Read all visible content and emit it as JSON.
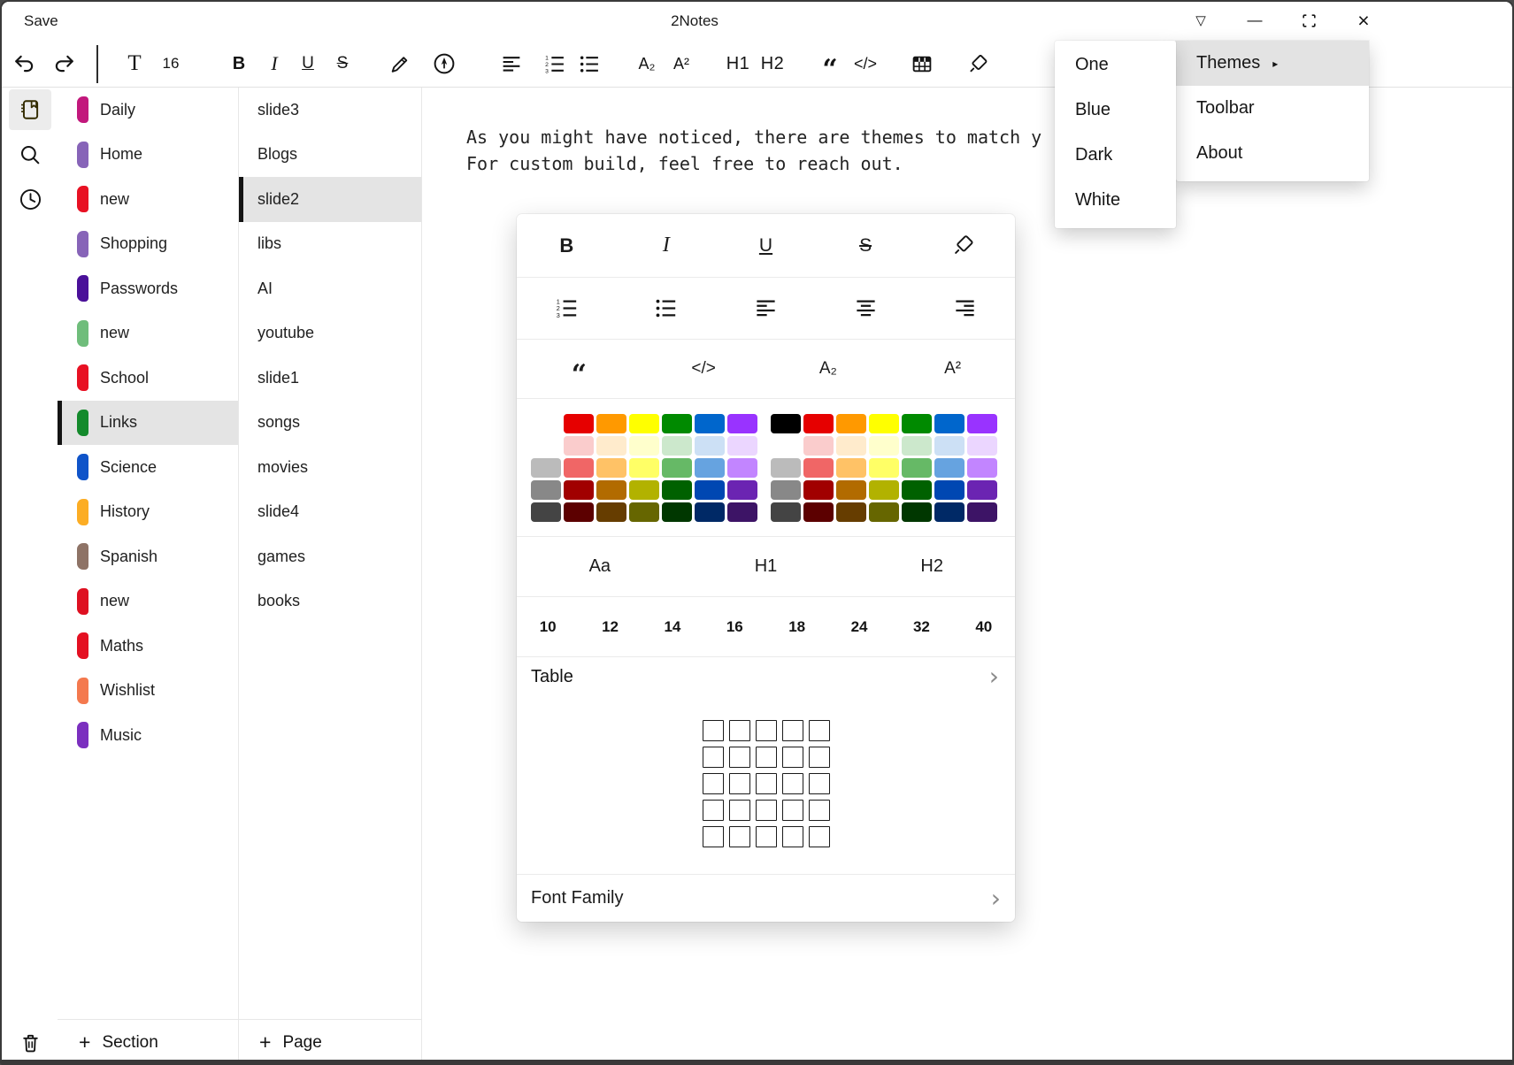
{
  "titlebar": {
    "save": "Save",
    "title": "2Notes"
  },
  "icons": {
    "dropdown": "▽",
    "minimize": "—",
    "close": "×",
    "chevron": "›",
    "submenu_arrow": "▸",
    "plus": "+"
  },
  "toolbar": {
    "font_button": "T",
    "font_size": "16",
    "bold": "B",
    "italic": "I",
    "underline": "U",
    "strike": "S",
    "subscript": "A₂",
    "superscript": "A²",
    "h1": "H1",
    "h2": "H2",
    "quote": "“",
    "code": "</>"
  },
  "sections": {
    "add_label": "Section",
    "items": [
      {
        "label": "Daily",
        "color": "#c2187c",
        "selected": false
      },
      {
        "label": "Home",
        "color": "#8764b8",
        "selected": false
      },
      {
        "label": "new",
        "color": "#e81123",
        "selected": false
      },
      {
        "label": "Shopping",
        "color": "#8764b8",
        "selected": false
      },
      {
        "label": "Passwords",
        "color": "#4a1099",
        "selected": false
      },
      {
        "label": "new",
        "color": "#6fbd7b",
        "selected": false
      },
      {
        "label": "School",
        "color": "#e81123",
        "selected": false
      },
      {
        "label": "Links",
        "color": "#148a2c",
        "selected": true
      },
      {
        "label": "Science",
        "color": "#0f54c9",
        "selected": false
      },
      {
        "label": "History",
        "color": "#fcad24",
        "selected": false
      },
      {
        "label": "Spanish",
        "color": "#8e7366",
        "selected": false
      },
      {
        "label": "new",
        "color": "#de1021",
        "selected": false
      },
      {
        "label": "Maths",
        "color": "#e41022",
        "selected": false
      },
      {
        "label": "Wishlist",
        "color": "#f4794e",
        "selected": false
      },
      {
        "label": "Music",
        "color": "#7b2fbf",
        "selected": false
      }
    ]
  },
  "pages": {
    "add_label": "Page",
    "items": [
      {
        "label": "slide3",
        "selected": false
      },
      {
        "label": "Blogs",
        "selected": false
      },
      {
        "label": "slide2",
        "selected": true
      },
      {
        "label": "libs",
        "selected": false
      },
      {
        "label": "AI",
        "selected": false
      },
      {
        "label": "youtube",
        "selected": false
      },
      {
        "label": "slide1",
        "selected": false
      },
      {
        "label": "songs",
        "selected": false
      },
      {
        "label": "movies",
        "selected": false
      },
      {
        "label": "slide4",
        "selected": false
      },
      {
        "label": "games",
        "selected": false
      },
      {
        "label": "books",
        "selected": false
      }
    ]
  },
  "editor": {
    "line1": "As you might have noticed, there are themes to match y",
    "line2": "For custom build, feel free to reach out."
  },
  "popup": {
    "format": [
      "B",
      "I",
      "U",
      "S"
    ],
    "script_row": {
      "quote": "“",
      "code": "</>",
      "subscript": "A₂",
      "superscript": "A²"
    },
    "palette": {
      "left": [
        "",
        "#e60000",
        "#ff9900",
        "#ffff00",
        "#008a00",
        "#0066cc",
        "#9933ff",
        "",
        "#facccc",
        "#ffebcc",
        "#ffffcc",
        "#cce8cc",
        "#cce0f5",
        "#ebd6ff",
        "#bbbbbb",
        "#f06666",
        "#ffc266",
        "#ffff66",
        "#66b966",
        "#66a3e0",
        "#c285ff",
        "#888888",
        "#a10000",
        "#b26b00",
        "#b2b200",
        "#006100",
        "#0047b2",
        "#6b24b2",
        "#444444",
        "#5c0000",
        "#663d00",
        "#666600",
        "#003700",
        "#002966",
        "#3d1466"
      ],
      "right": [
        "#000000",
        "#e60000",
        "#ff9900",
        "#ffff00",
        "#008a00",
        "#0066cc",
        "#9933ff",
        "#ffffff",
        "#facccc",
        "#ffebcc",
        "#ffffcc",
        "#cce8cc",
        "#cce0f5",
        "#ebd6ff",
        "#bbbbbb",
        "#f06666",
        "#ffc266",
        "#ffff66",
        "#66b966",
        "#66a3e0",
        "#c285ff",
        "#888888",
        "#a10000",
        "#b26b00",
        "#b2b200",
        "#006100",
        "#0047b2",
        "#6b24b2",
        "#444444",
        "#5c0000",
        "#663d00",
        "#666600",
        "#003700",
        "#002966",
        "#3d1466"
      ]
    },
    "styles": [
      "Aa",
      "H1",
      "H2"
    ],
    "sizes": [
      "10",
      "12",
      "14",
      "16",
      "18",
      "24",
      "32",
      "40"
    ],
    "table": {
      "label": "Table",
      "rows": 5,
      "cols": 5
    },
    "font_family": {
      "label": "Font Family"
    }
  },
  "menus": {
    "submenu": {
      "items": [
        "One",
        "Blue",
        "Dark",
        "White"
      ]
    },
    "main": {
      "items": [
        {
          "label": "Themes",
          "highlighted": true,
          "has_submenu": true
        },
        {
          "label": "Toolbar",
          "highlighted": false,
          "has_submenu": false
        },
        {
          "label": "About",
          "highlighted": false,
          "has_submenu": false
        }
      ]
    }
  },
  "colors": {
    "selected_row_bg": "#e4e4e4",
    "menu_highlight_bg": "#e3e3e3"
  }
}
